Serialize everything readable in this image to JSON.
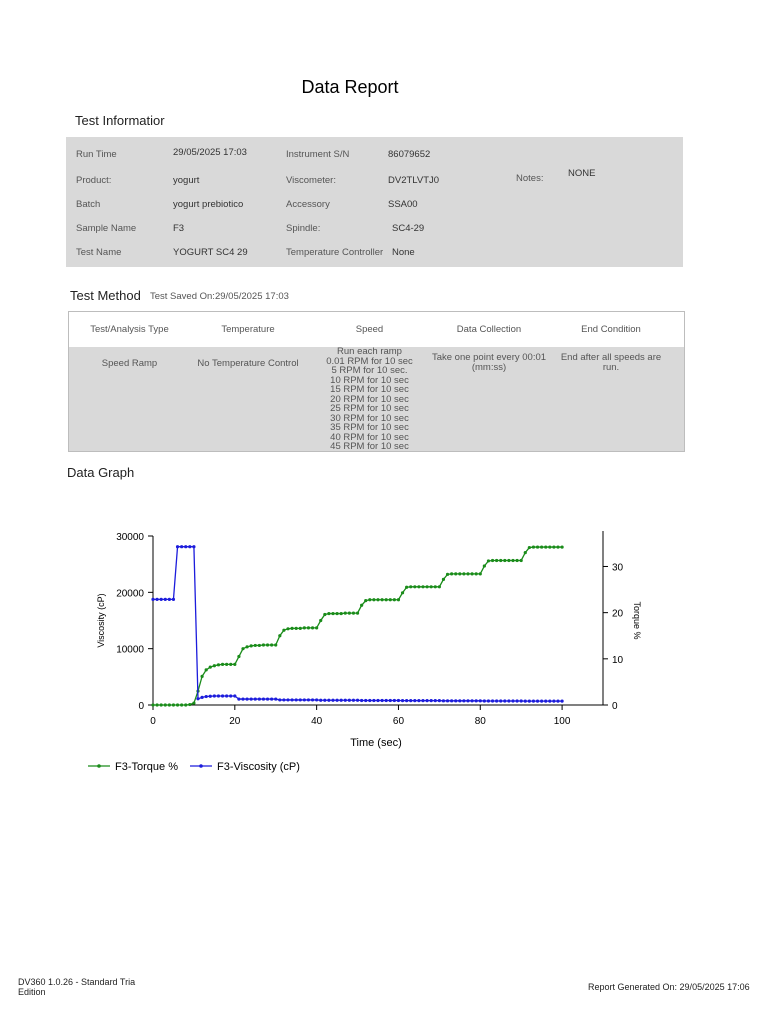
{
  "report_title": "Data Report",
  "test_information": {
    "heading": "Test Informatior",
    "fields": [
      {
        "label": "Run Time",
        "value": "29/05/2025 17:03"
      },
      {
        "label": "Product:",
        "value": "yogurt"
      },
      {
        "label": "Batch",
        "value": "yogurt prebiotico"
      },
      {
        "label": "Sample Name",
        "value": "F3"
      },
      {
        "label": "Test Name",
        "value": "YOGURT SC4 29"
      },
      {
        "label": "Instrument S/N",
        "value": "86079652"
      },
      {
        "label": "Viscometer:",
        "value": "DV2TLVTJ0"
      },
      {
        "label": "Accessory",
        "value": "SSA00"
      },
      {
        "label": "Spindle:",
        "value": "SC4-29"
      },
      {
        "label": "Temperature Controller",
        "value": "None"
      }
    ],
    "notes_label": "Notes:",
    "notes_value": "NONE"
  },
  "test_method": {
    "heading": "Test Method",
    "saved_text": "Test Saved On:29/05/2025 17:03",
    "columns": [
      "Test/Analysis Type",
      "Temperature",
      "Speed",
      "Data Collection",
      "End Condition"
    ],
    "row": {
      "type": "Speed Ramp",
      "temperature": "No Temperature Control",
      "speed_lines": [
        "Run each ramp",
        "0.01 RPM for 10 sec",
        "5 RPM for 10 sec.",
        "10 RPM for 10 sec",
        "15 RPM for 10 sec",
        "20 RPM for 10 sec",
        "25 RPM for 10 sec",
        "30 RPM for 10 sec",
        "35 RPM for 10 sec",
        "40 RPM for 10 sec",
        "45 RPM for 10 sec"
      ],
      "data_collection_lines": [
        "Take one point every 00:01",
        "(mm:ss)"
      ],
      "end_condition_lines": [
        "End after all speeds are",
        "run."
      ]
    }
  },
  "data_graph": {
    "heading": "Data Graph"
  },
  "chart_data": {
    "type": "line",
    "xlabel": "Time (sec)",
    "ylabel_left": "Viscosity (cP)",
    "ylabel_right": "Torque %",
    "xlim": [
      0,
      110
    ],
    "xticks": [
      0,
      20,
      40,
      60,
      80,
      100
    ],
    "ylim_left": [
      0,
      30000
    ],
    "yticks_left": [
      0,
      10000,
      20000,
      30000
    ],
    "ylim_right": [
      0,
      36.6
    ],
    "yticks_right": [
      0,
      10,
      20,
      30
    ],
    "series": [
      {
        "name": "F3-Torque %",
        "axis": "right",
        "color": "#1a8c1a",
        "x": [
          0,
          1,
          2,
          3,
          4,
          5,
          6,
          7,
          8,
          9,
          10,
          11,
          12,
          13,
          14,
          15,
          16,
          17,
          18,
          19,
          20,
          21,
          22,
          23,
          24,
          25,
          26,
          27,
          28,
          29,
          30,
          31,
          32,
          33,
          34,
          35,
          36,
          37,
          38,
          39,
          40,
          41,
          42,
          43,
          44,
          45,
          46,
          47,
          48,
          49,
          50,
          51,
          52,
          53,
          54,
          55,
          56,
          57,
          58,
          59,
          60,
          61,
          62,
          63,
          64,
          65,
          66,
          67,
          68,
          69,
          70,
          71,
          72,
          73,
          74,
          75,
          76,
          77,
          78,
          79,
          80,
          81,
          82,
          83,
          84,
          85,
          86,
          87,
          88,
          89,
          90,
          91,
          92,
          93,
          94,
          95,
          96,
          97,
          98,
          99,
          100
        ],
        "y": [
          0,
          0,
          0,
          0,
          0,
          0,
          0,
          0,
          0,
          0.1,
          0.4,
          3.0,
          6.2,
          7.6,
          8.2,
          8.5,
          8.7,
          8.8,
          8.8,
          8.8,
          8.8,
          10.5,
          12.2,
          12.6,
          12.8,
          12.9,
          12.9,
          13.0,
          13.0,
          13.0,
          13.0,
          15.0,
          16.2,
          16.5,
          16.6,
          16.6,
          16.6,
          16.7,
          16.7,
          16.7,
          16.7,
          18.3,
          19.6,
          19.8,
          19.8,
          19.8,
          19.8,
          19.9,
          19.9,
          19.9,
          19.9,
          21.6,
          22.6,
          22.8,
          22.8,
          22.8,
          22.8,
          22.8,
          22.8,
          22.8,
          22.8,
          24.3,
          25.5,
          25.6,
          25.6,
          25.6,
          25.6,
          25.6,
          25.6,
          25.6,
          25.6,
          27.2,
          28.3,
          28.4,
          28.4,
          28.4,
          28.4,
          28.4,
          28.4,
          28.4,
          28.4,
          30.1,
          31.2,
          31.3,
          31.3,
          31.3,
          31.3,
          31.3,
          31.3,
          31.3,
          31.3,
          33.0,
          34.1,
          34.2,
          34.2,
          34.2,
          34.2,
          34.2,
          34.2,
          34.2,
          34.2
        ]
      },
      {
        "name": "F3-Viscosity (cP)",
        "axis": "left",
        "color": "#1c1cdc",
        "x": [
          0,
          1,
          2,
          3,
          4,
          5,
          6,
          7,
          8,
          9,
          10,
          11,
          12,
          13,
          14,
          15,
          16,
          17,
          18,
          19,
          20,
          21,
          22,
          23,
          24,
          25,
          26,
          27,
          28,
          29,
          30,
          31,
          32,
          33,
          34,
          35,
          36,
          37,
          38,
          39,
          40,
          41,
          42,
          43,
          44,
          45,
          46,
          47,
          48,
          49,
          50,
          51,
          52,
          53,
          54,
          55,
          56,
          57,
          58,
          59,
          60,
          61,
          62,
          63,
          64,
          65,
          66,
          67,
          68,
          69,
          70,
          71,
          72,
          73,
          74,
          75,
          76,
          77,
          78,
          79,
          80,
          81,
          82,
          83,
          84,
          85,
          86,
          87,
          88,
          89,
          90,
          91,
          92,
          93,
          94,
          95,
          96,
          97,
          98,
          99,
          100
        ],
        "y": [
          18750,
          18750,
          18750,
          18750,
          18750,
          18750,
          28100,
          28100,
          28100,
          28100,
          28100,
          1100,
          1350,
          1500,
          1550,
          1600,
          1600,
          1600,
          1600,
          1600,
          1600,
          1050,
          1050,
          1050,
          1050,
          1050,
          1050,
          1050,
          1050,
          1050,
          1050,
          900,
          900,
          900,
          900,
          900,
          900,
          900,
          900,
          900,
          900,
          840,
          840,
          840,
          840,
          840,
          840,
          840,
          840,
          840,
          840,
          800,
          800,
          800,
          800,
          800,
          800,
          800,
          800,
          800,
          800,
          770,
          770,
          770,
          770,
          770,
          770,
          770,
          770,
          770,
          770,
          740,
          740,
          740,
          740,
          740,
          740,
          740,
          740,
          740,
          740,
          710,
          710,
          710,
          710,
          710,
          710,
          710,
          710,
          710,
          710,
          690,
          690,
          690,
          690,
          690,
          690,
          690,
          690,
          690,
          690
        ]
      }
    ]
  },
  "footer": {
    "left_text": "DV360 1.0.26 - Standard Tria Edition",
    "right_text": "Report Generated On: 29/05/2025 17:06"
  }
}
